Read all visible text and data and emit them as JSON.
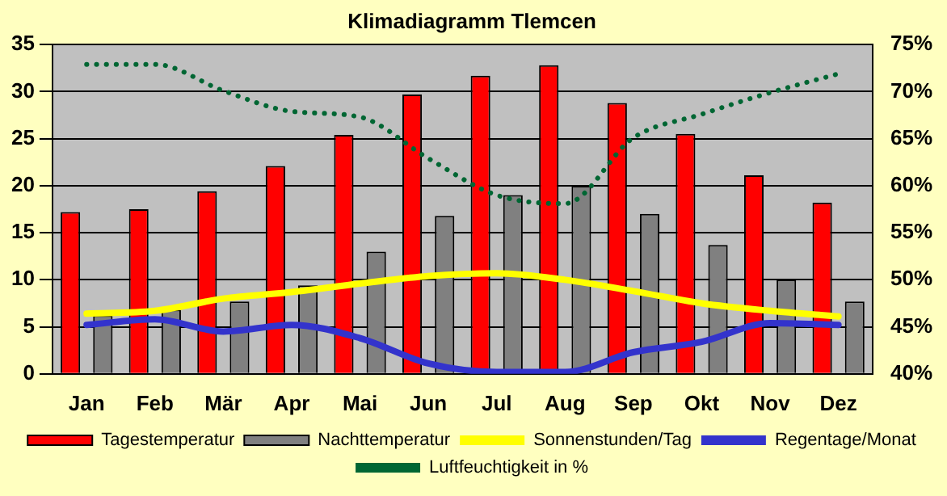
{
  "chart_data": {
    "type": "bar",
    "title": "Klimadiagramm Tlemcen",
    "categories": [
      "Jan",
      "Feb",
      "Mär",
      "Apr",
      "Mai",
      "Jun",
      "Jul",
      "Aug",
      "Sep",
      "Okt",
      "Nov",
      "Dez"
    ],
    "series": [
      {
        "name": "Tagestemperatur",
        "color": "#ff0000",
        "values": [
          17.2,
          17.5,
          19.4,
          22.1,
          25.4,
          29.7,
          31.7,
          32.8,
          28.8,
          25.5,
          21.1,
          18.2
        ]
      },
      {
        "name": "Nachttemperatur",
        "color": "#808080",
        "values": [
          6.2,
          6.8,
          7.7,
          9.4,
          13.0,
          16.8,
          19.0,
          20.0,
          17.0,
          13.7,
          10.0,
          7.7
        ]
      },
      {
        "name": "Sonnenstunden/Tag",
        "type": "line",
        "color": "#ffff00",
        "line_style": "solid",
        "values": [
          6.4,
          6.7,
          8.0,
          8.7,
          9.6,
          10.4,
          10.7,
          10.0,
          8.8,
          7.5,
          6.7,
          6.1
        ]
      },
      {
        "name": "Regentage/Monat",
        "type": "line",
        "color": "#3333cc",
        "line_style": "solid",
        "values": [
          5.2,
          5.8,
          4.5,
          5.2,
          3.8,
          1.1,
          0.2,
          0.2,
          2.3,
          3.4,
          5.4,
          5.2
        ]
      },
      {
        "name": "Luftfeuchtigkeit in %",
        "type": "line",
        "color": "#006633",
        "line_style": "dotted",
        "axis": "y2",
        "values": [
          72.9,
          72.9,
          70.1,
          67.9,
          67.3,
          62.9,
          59.0,
          58.1,
          65.1,
          67.6,
          69.9,
          71.9
        ]
      }
    ],
    "ylim": [
      0,
      35
    ],
    "yticks": [
      0,
      5,
      10,
      15,
      20,
      25,
      30,
      35
    ],
    "y2lim": [
      40,
      75
    ],
    "y2ticks": [
      {
        "value": 40,
        "label": "40%"
      },
      {
        "value": 45,
        "label": "45%"
      },
      {
        "value": 50,
        "label": "50%"
      },
      {
        "value": 55,
        "label": "55%"
      },
      {
        "value": 60,
        "label": "60%"
      },
      {
        "value": 65,
        "label": "65%"
      },
      {
        "value": 70,
        "label": "70%"
      },
      {
        "value": 75,
        "label": "75%"
      }
    ],
    "grid": "y",
    "legend": "bottom",
    "marker": "none"
  }
}
